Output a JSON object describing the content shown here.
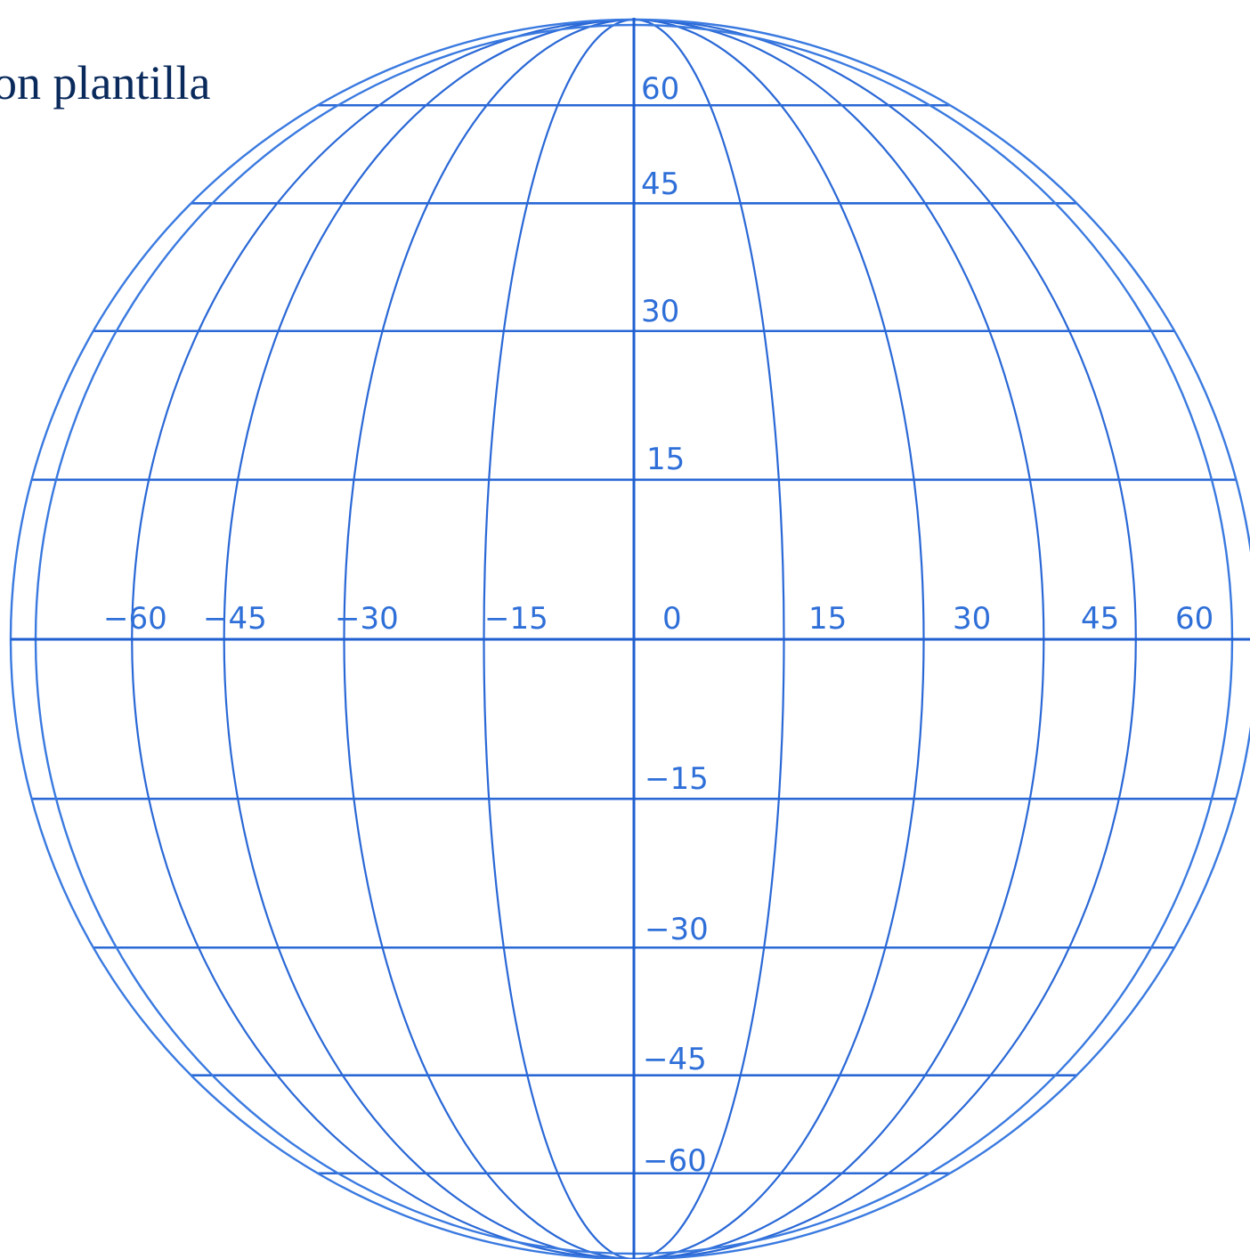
{
  "heading": "on plantilla",
  "colors": {
    "lines": "#2a68d6",
    "labels": "#2f6fd8",
    "heading": "#0a2a5c"
  },
  "latitude_labels": [
    "60",
    "45",
    "30",
    "15",
    "−15",
    "−30",
    "−45",
    "−60"
  ],
  "longitude_labels": [
    "−60",
    "−45",
    "−30",
    "−15",
    "0",
    "15",
    "30",
    "45",
    "60"
  ],
  "latitudes": [
    60,
    45,
    30,
    15,
    0,
    -15,
    -30,
    -45,
    -60
  ],
  "longitudes": [
    -60,
    -45,
    -30,
    -15,
    0,
    15,
    30,
    45,
    60
  ]
}
